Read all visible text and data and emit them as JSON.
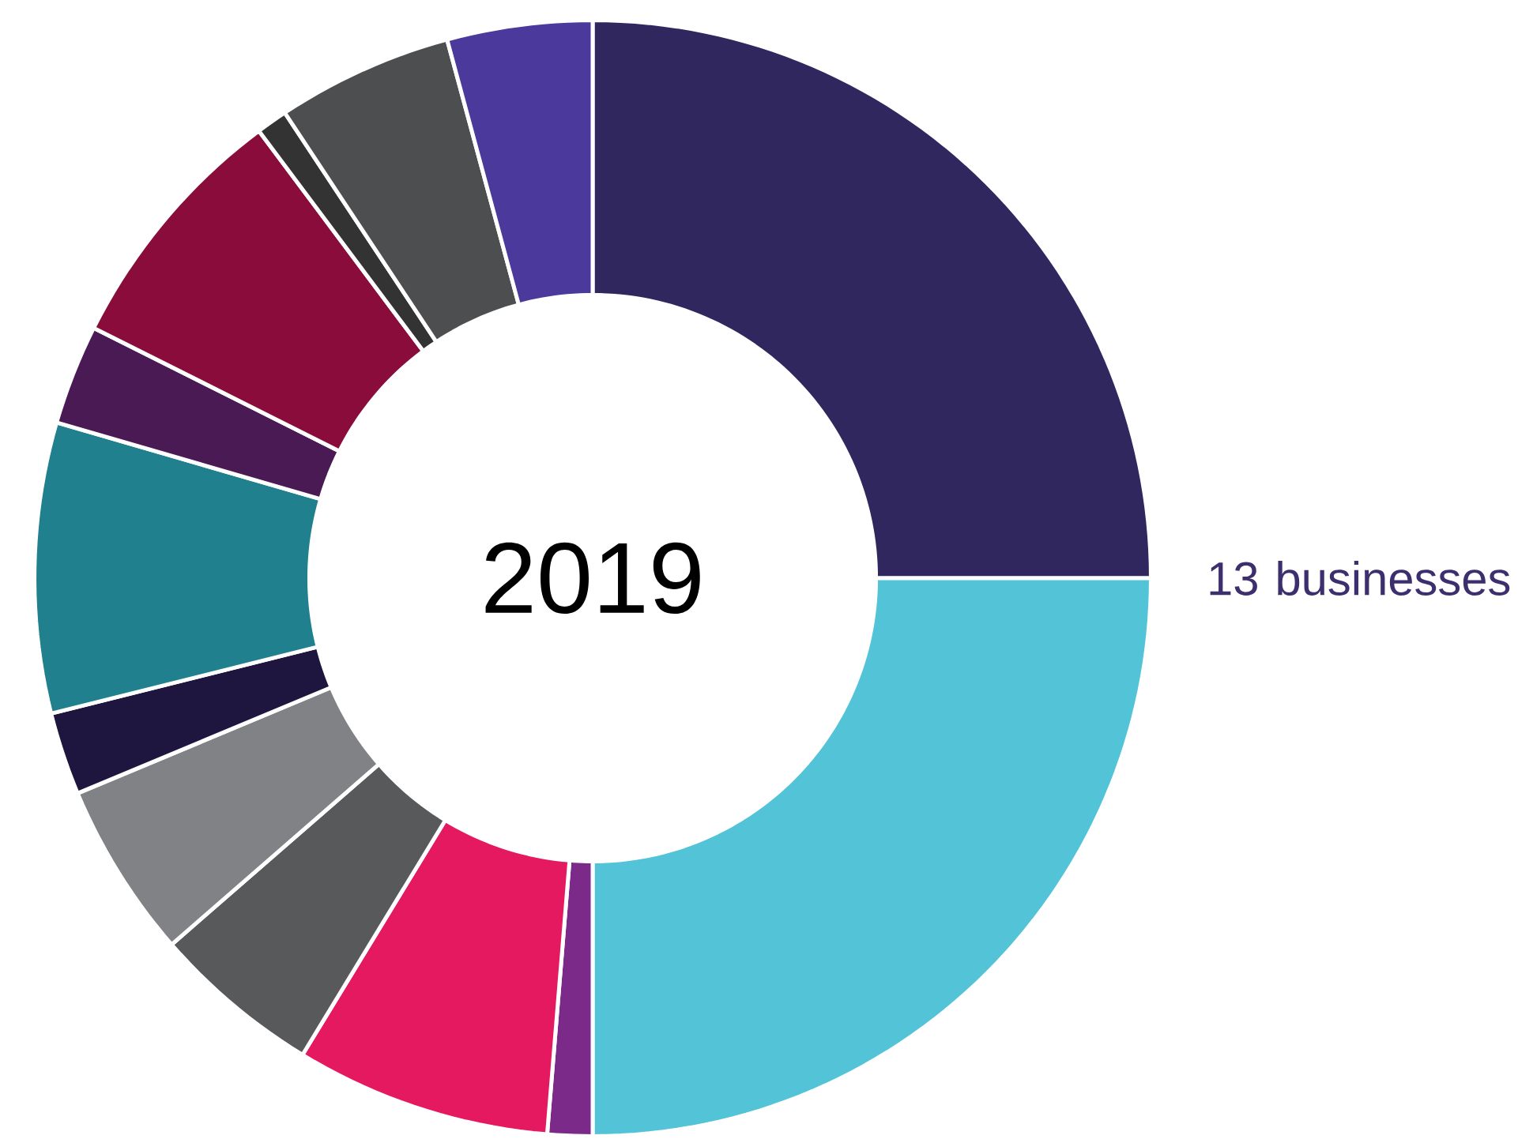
{
  "chart_data": {
    "type": "donut",
    "title": "2019",
    "categories": [
      null,
      null,
      null,
      null,
      null,
      null,
      null,
      null,
      null,
      null,
      null,
      null,
      null
    ],
    "values": [
      25,
      25,
      1.3,
      7.4,
      4.9,
      5.1,
      2.4,
      8.4,
      2.9,
      7.4,
      0.9,
      5.1,
      4.2
    ],
    "colors": [
      "#31275f",
      "#53c4d7",
      "#7b2a8a",
      "#e5195f",
      "#58595b",
      "#808285",
      "#1f1640",
      "#21808d",
      "#4a1a54",
      "#8a0c3a",
      "#333333",
      "#4d4e50",
      "#4b3a9c"
    ],
    "annotations": [
      "13 businesses"
    ]
  }
}
